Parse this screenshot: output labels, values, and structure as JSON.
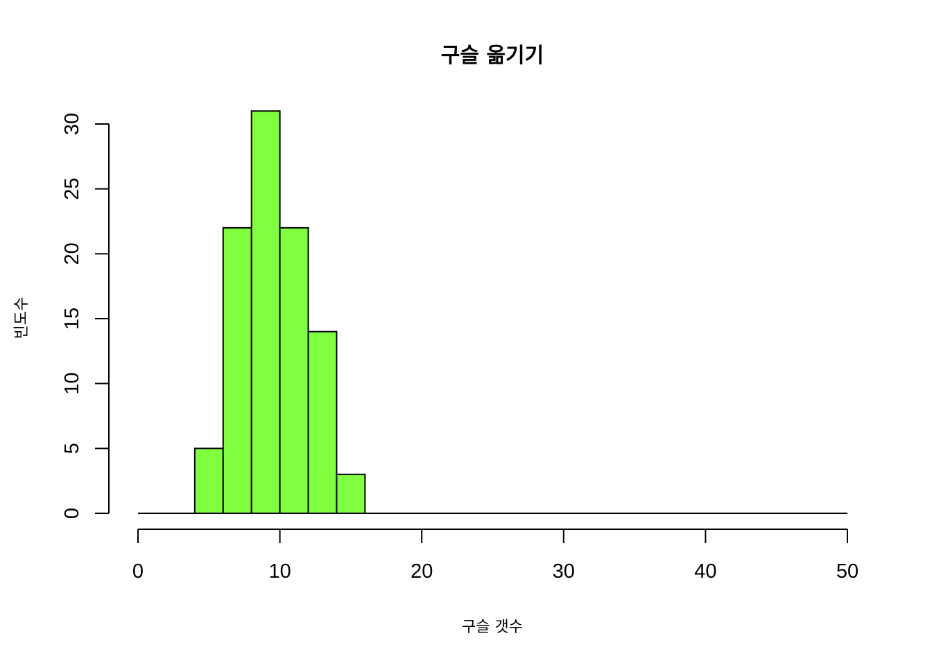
{
  "chart_data": {
    "type": "bar",
    "title": "구슬 옮기기",
    "xlabel": "구슬 갯수",
    "ylabel": "빈도수",
    "bins": [
      {
        "from": 4,
        "to": 6,
        "value": 5
      },
      {
        "from": 6,
        "to": 8,
        "value": 22
      },
      {
        "from": 8,
        "to": 10,
        "value": 31
      },
      {
        "from": 10,
        "to": 12,
        "value": 22
      },
      {
        "from": 12,
        "to": 14,
        "value": 14
      },
      {
        "from": 14,
        "to": 16,
        "value": 3
      }
    ],
    "xlim": [
      0,
      50
    ],
    "ylim": [
      0,
      30
    ],
    "xticks": [
      0,
      10,
      20,
      30,
      40,
      50
    ],
    "yticks": [
      0,
      5,
      10,
      15,
      20,
      25,
      30
    ],
    "bar_color": "#7FFF3F",
    "grid": false
  }
}
